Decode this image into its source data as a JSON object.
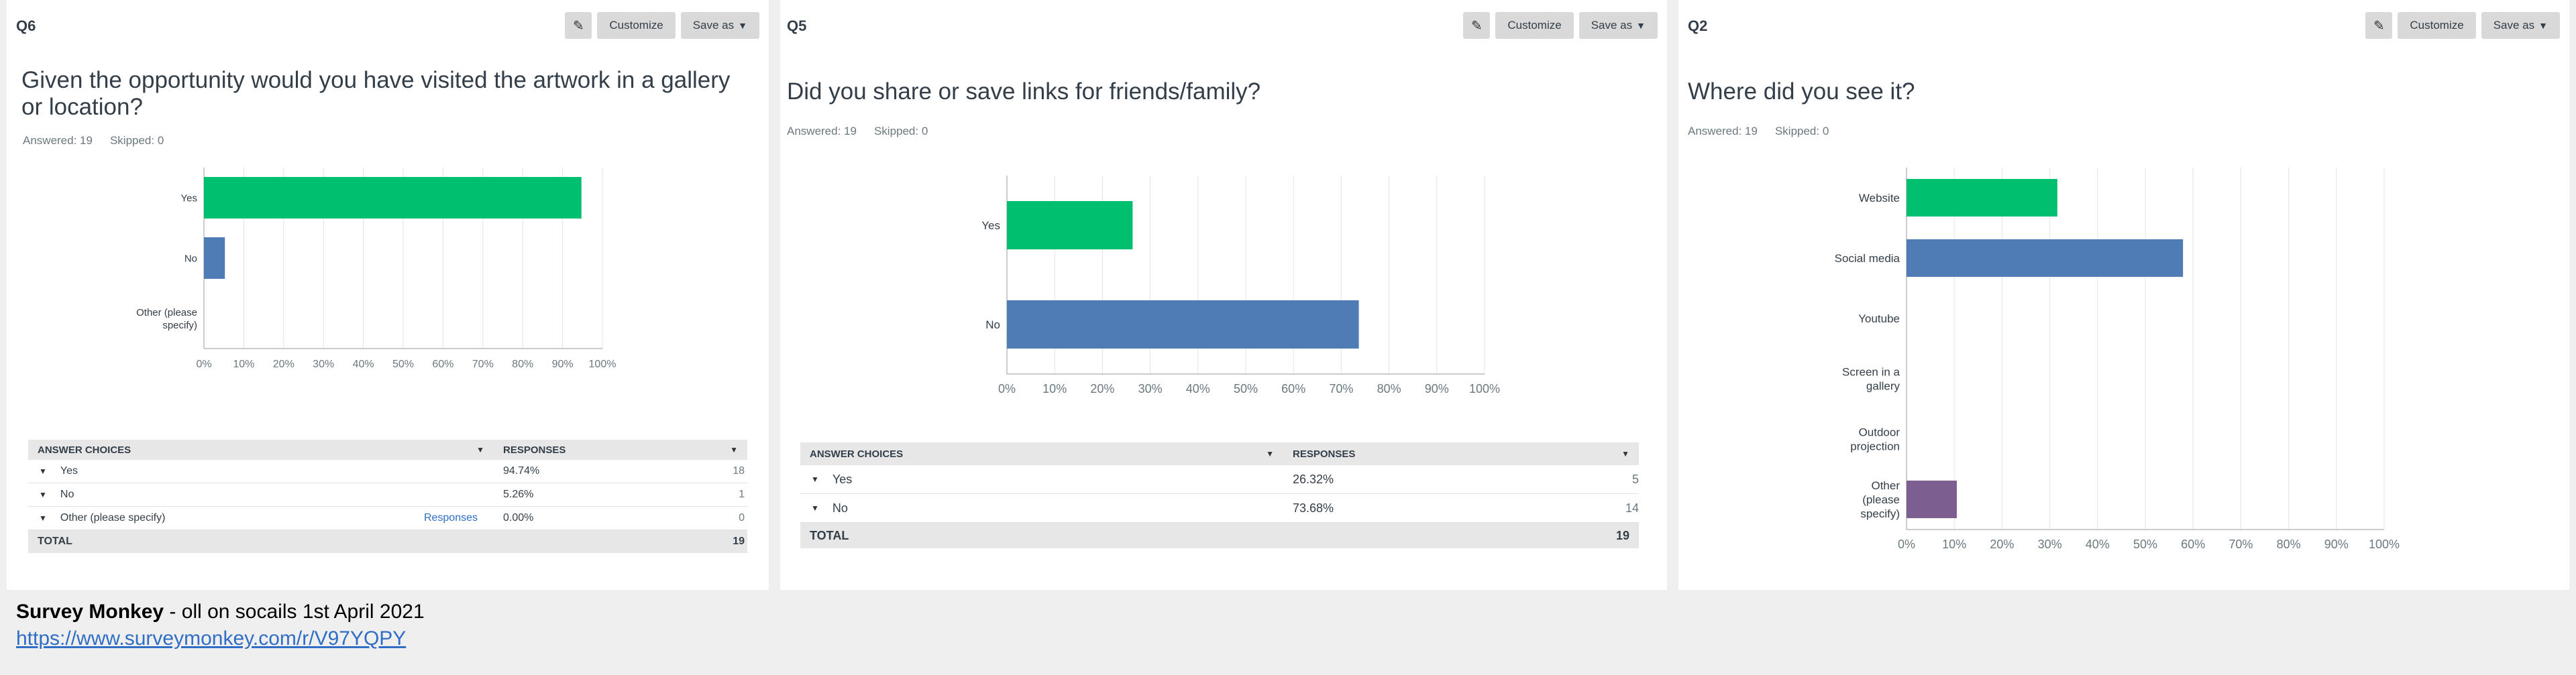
{
  "panels": [
    {
      "qid": "Q6",
      "question": "Given the opportunity would you have visited the artwork in a gallery or location?",
      "answered": "Answered: 19",
      "skipped": "Skipped: 0",
      "toolbar": {
        "customize": "Customize",
        "save_as": "Save as"
      },
      "table": {
        "col_answer": "ANSWER CHOICES",
        "col_responses": "RESPONSES",
        "rows": [
          {
            "label": "Yes",
            "percent": "94.74%",
            "count": "18"
          },
          {
            "label": "No",
            "percent": "5.26%",
            "count": "1"
          },
          {
            "label": "Other (please specify)",
            "link": "Responses",
            "percent": "0.00%",
            "count": "0"
          }
        ],
        "total_label": "TOTAL",
        "total": "19"
      }
    },
    {
      "qid": "Q5",
      "question": "Did you share or save links for friends/family?",
      "answered": "Answered: 19",
      "skipped": "Skipped: 0",
      "toolbar": {
        "customize": "Customize",
        "save_as": "Save as"
      },
      "table": {
        "col_answer": "ANSWER CHOICES",
        "col_responses": "RESPONSES",
        "rows": [
          {
            "label": "Yes",
            "percent": "26.32%",
            "count": "5"
          },
          {
            "label": "No",
            "percent": "73.68%",
            "count": "14"
          }
        ],
        "total_label": "TOTAL",
        "total": "19"
      }
    },
    {
      "qid": "Q2",
      "question": "Where did you see it?",
      "answered": "Answered: 19",
      "skipped": "Skipped: 0",
      "toolbar": {
        "customize": "Customize",
        "save_as": "Save as"
      }
    }
  ],
  "chart_data": [
    {
      "type": "bar",
      "orientation": "horizontal",
      "categories": [
        "Yes",
        "No",
        "Other (please specify)"
      ],
      "values": [
        94.74,
        5.26,
        0
      ],
      "colors": [
        "#00bf6f",
        "#507cb6",
        "#6bc8cd"
      ],
      "xlim": [
        0,
        100
      ],
      "xticks": [
        "0%",
        "10%",
        "20%",
        "30%",
        "40%",
        "50%",
        "60%",
        "70%",
        "80%",
        "90%",
        "100%"
      ],
      "grid": true
    },
    {
      "type": "bar",
      "orientation": "horizontal",
      "categories": [
        "Yes",
        "No"
      ],
      "values": [
        26.32,
        73.68
      ],
      "colors": [
        "#00bf6f",
        "#507cb6"
      ],
      "xlim": [
        0,
        100
      ],
      "xticks": [
        "0%",
        "10%",
        "20%",
        "30%",
        "40%",
        "50%",
        "60%",
        "70%",
        "80%",
        "90%",
        "100%"
      ],
      "grid": true
    },
    {
      "type": "bar",
      "orientation": "horizontal",
      "categories": [
        "Website",
        "Social media",
        "Youtube",
        "Screen in a gallery",
        "Outdoor projection",
        "Other (please specify)"
      ],
      "values": [
        31.58,
        57.89,
        0,
        0,
        0,
        10.53
      ],
      "colors": [
        "#00bf6f",
        "#507cb6",
        "#6bc8cd",
        "#f9be00",
        "#d25f90",
        "#7d5e90"
      ],
      "xlim": [
        0,
        100
      ],
      "xticks": [
        "0%",
        "10%",
        "20%",
        "30%",
        "40%",
        "50%",
        "60%",
        "70%",
        "80%",
        "90%",
        "100%"
      ],
      "grid": true
    }
  ],
  "footer": {
    "title_bold": "Survey Monkey",
    "title_rest": " - oll on socails 1st April 2021",
    "link": "https://www.surveymonkey.com/r/V97YQPY"
  }
}
